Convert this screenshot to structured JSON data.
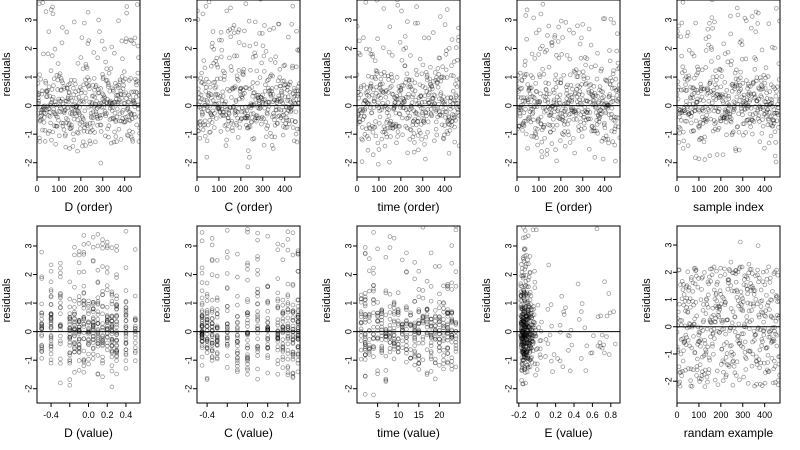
{
  "chart_data": [
    {
      "type": "scatter",
      "xlabel": "D (order)",
      "ylabel": "residuals",
      "xlim": [
        0,
        470
      ],
      "ylim": [
        -2.5,
        3.7
      ],
      "xticks": [
        0,
        100,
        200,
        300,
        400
      ],
      "yticks": [
        -2,
        -1,
        0,
        1,
        2,
        3
      ],
      "reference_line": 0,
      "pattern": "order",
      "x_count": 470,
      "seed": 1
    },
    {
      "type": "scatter",
      "xlabel": "C (order)",
      "ylabel": "residuals",
      "xlim": [
        0,
        470
      ],
      "ylim": [
        -2.5,
        3.7
      ],
      "xticks": [
        0,
        100,
        200,
        300,
        400
      ],
      "yticks": [
        -2,
        -1,
        0,
        1,
        2,
        3
      ],
      "reference_line": 0,
      "pattern": "order",
      "x_count": 470,
      "seed": 2
    },
    {
      "type": "scatter",
      "xlabel": "time (order)",
      "ylabel": "residuals",
      "xlim": [
        0,
        470
      ],
      "ylim": [
        -2.5,
        3.7
      ],
      "xticks": [
        0,
        100,
        200,
        300,
        400
      ],
      "yticks": [
        -2,
        -1,
        0,
        1,
        2,
        3
      ],
      "reference_line": 0,
      "pattern": "order",
      "x_count": 470,
      "seed": 3
    },
    {
      "type": "scatter",
      "xlabel": "E (order)",
      "ylabel": "residuals",
      "xlim": [
        0,
        470
      ],
      "ylim": [
        -2.5,
        3.7
      ],
      "xticks": [
        0,
        100,
        200,
        300,
        400
      ],
      "yticks": [
        -2,
        -1,
        0,
        1,
        2,
        3
      ],
      "reference_line": 0,
      "pattern": "order",
      "x_count": 470,
      "seed": 4
    },
    {
      "type": "scatter",
      "xlabel": "sample index",
      "ylabel": "residuals",
      "xlim": [
        0,
        470
      ],
      "ylim": [
        -2.5,
        3.7
      ],
      "xticks": [
        0,
        100,
        200,
        300,
        400
      ],
      "yticks": [
        -2,
        -1,
        0,
        1,
        2,
        3
      ],
      "reference_line": 0,
      "pattern": "order",
      "x_count": 470,
      "seed": 5
    },
    {
      "type": "scatter",
      "xlabel": "D (value)",
      "ylabel": "residuals",
      "xlim": [
        -0.55,
        0.55
      ],
      "ylim": [
        -2.5,
        3.7
      ],
      "xticks": [
        -0.4,
        -0.2,
        0.0,
        0.2,
        0.4
      ],
      "xtick_labels": [
        "-0.4",
        "",
        "0.0",
        "0.2",
        "0.4"
      ],
      "yticks": [
        -2,
        -1,
        0,
        1,
        2,
        3
      ],
      "reference_line": 0,
      "pattern": "columns",
      "columns": [
        -0.5,
        -0.4,
        -0.3,
        -0.2,
        -0.15,
        -0.1,
        -0.05,
        0.0,
        0.05,
        0.1,
        0.15,
        0.2,
        0.25,
        0.3,
        0.4,
        0.5
      ],
      "seed": 6
    },
    {
      "type": "scatter",
      "xlabel": "C (value)",
      "ylabel": "residuals",
      "xlim": [
        -0.5,
        0.52
      ],
      "ylim": [
        -2.5,
        3.7
      ],
      "xticks": [
        -0.4,
        -0.2,
        0.0,
        0.2,
        0.4
      ],
      "xtick_labels": [
        "-0.4",
        "",
        "0.0",
        "0.2",
        "0.4"
      ],
      "yticks": [
        -2,
        -1,
        0,
        1,
        2,
        3
      ],
      "reference_line": 0,
      "pattern": "columns",
      "columns": [
        -0.45,
        -0.4,
        -0.35,
        -0.3,
        -0.2,
        -0.1,
        0.0,
        0.1,
        0.2,
        0.3,
        0.35,
        0.4,
        0.45,
        0.5
      ],
      "seed": 7
    },
    {
      "type": "scatter",
      "xlabel": "time (value)",
      "ylabel": "residuals",
      "xlim": [
        0,
        25
      ],
      "ylim": [
        -2.5,
        3.7
      ],
      "xticks": [
        5,
        10,
        15,
        20
      ],
      "yticks": [
        -2,
        -1,
        0,
        1,
        2,
        3
      ],
      "reference_line": 0,
      "pattern": "columns",
      "columns": [
        1,
        2,
        3,
        4,
        5,
        6,
        7,
        8,
        9,
        10,
        11,
        12,
        13,
        14,
        15,
        16,
        17,
        18,
        19,
        20,
        21,
        22,
        23,
        24
      ],
      "seed": 8
    },
    {
      "type": "scatter",
      "xlabel": "E (value)",
      "ylabel": "residuals",
      "xlim": [
        -0.22,
        0.9
      ],
      "ylim": [
        -2.5,
        3.7
      ],
      "xticks": [
        -0.2,
        0.0,
        0.2,
        0.4,
        0.6,
        0.8
      ],
      "yticks": [
        -2,
        -1,
        0,
        1,
        2,
        3
      ],
      "reference_line": 0,
      "pattern": "skewed",
      "seed": 9
    },
    {
      "type": "scatter",
      "xlabel": "randam example",
      "ylabel": "residuals",
      "xlim": [
        0,
        470
      ],
      "ylim": [
        -2.8,
        3.7
      ],
      "xticks": [
        0,
        100,
        200,
        300,
        400
      ],
      "yticks": [
        -2,
        -1,
        0,
        1,
        2,
        3
      ],
      "reference_line": 0,
      "pattern": "uniform",
      "x_count": 470,
      "seed": 10
    }
  ]
}
